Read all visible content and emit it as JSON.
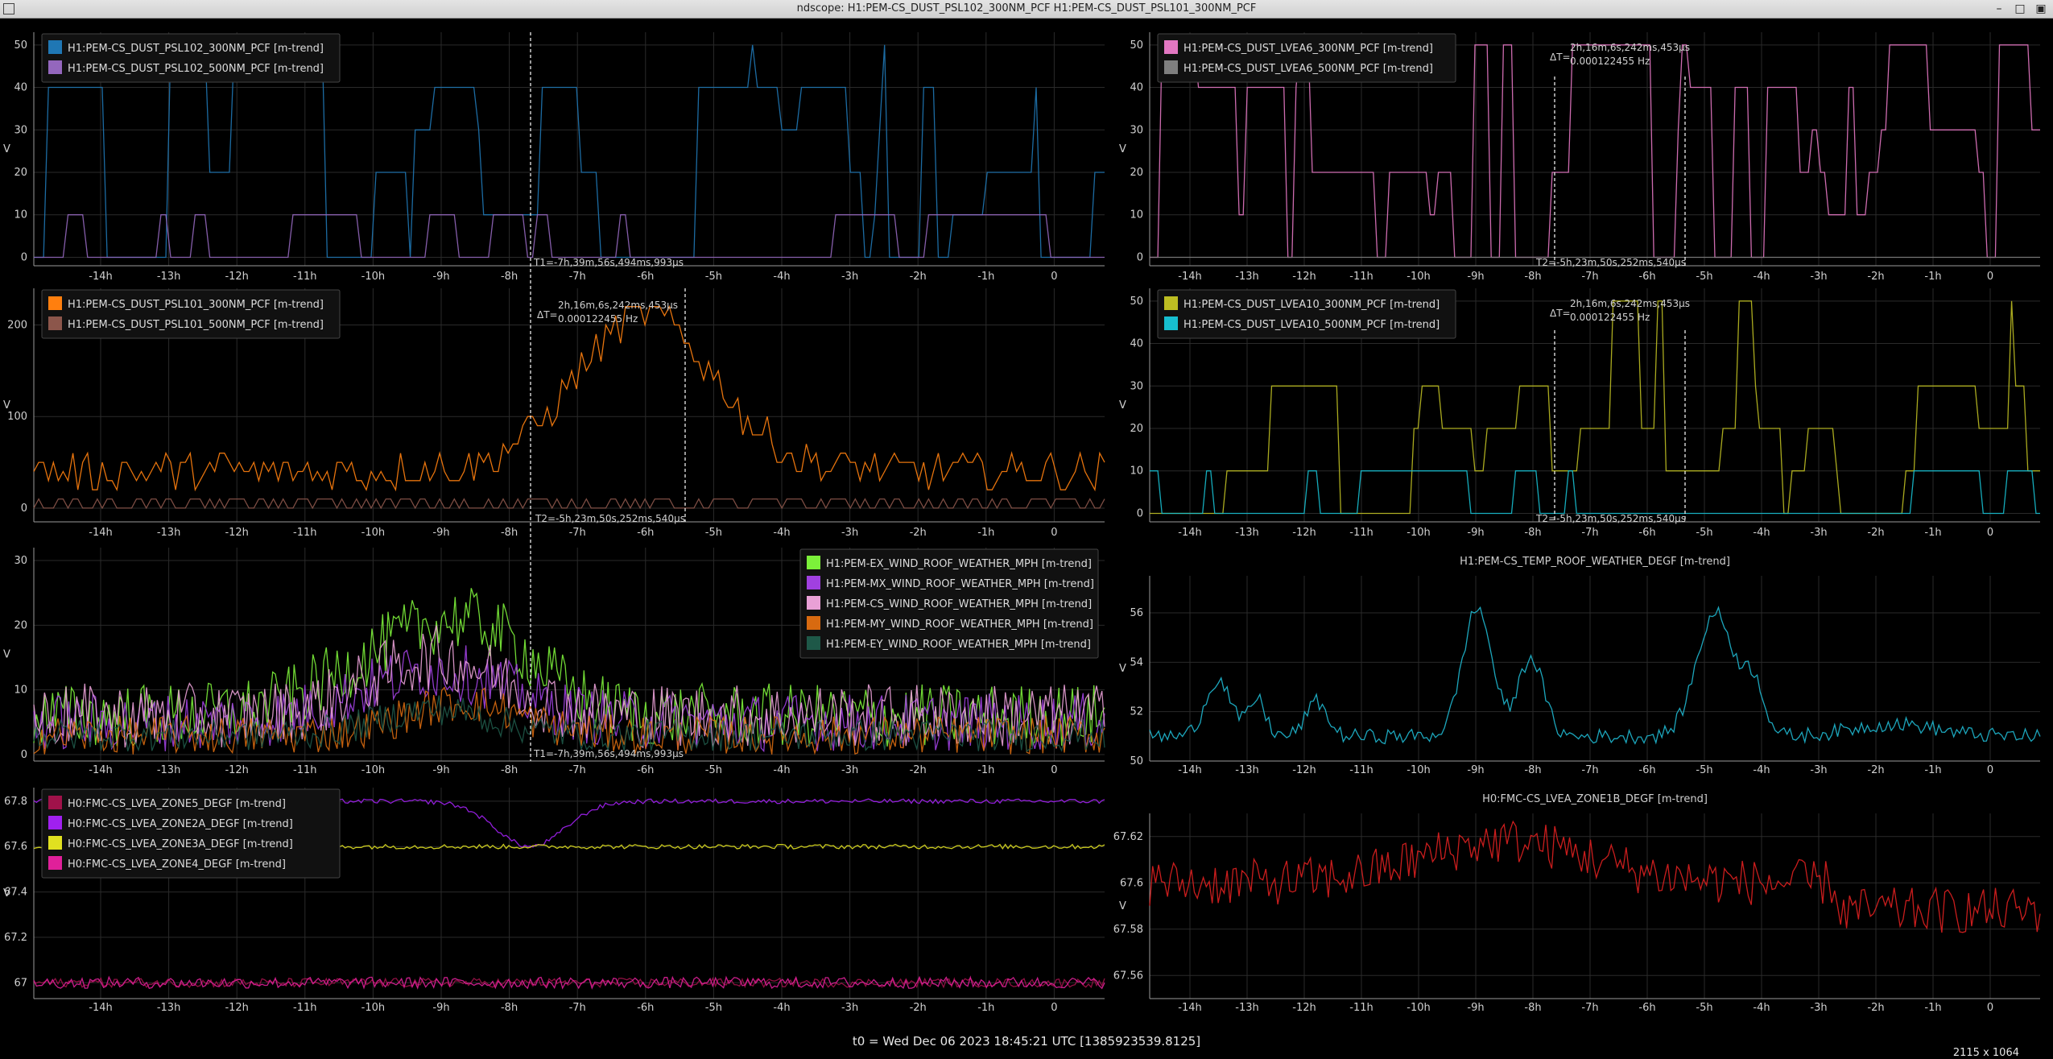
{
  "window": {
    "title": "ndscope: H1:PEM-CS_DUST_PSL102_300NM_PCF H1:PEM-CS_DUST_PSL101_300NM_PCF",
    "buttons": [
      "minimize",
      "maximize",
      "close"
    ]
  },
  "footer": {
    "t0_text": "t0 = Wed Dec 06 2023 18:45:21 UTC [1385923539.8125]",
    "size_text": "2115 x 1064"
  },
  "x_ticks_left": [
    "-14h",
    "-13h",
    "-12h",
    "-11h",
    "-10h",
    "-9h",
    "-8h",
    "-7h",
    "-6h",
    "-5h",
    "-4h",
    "-3h",
    "-2h",
    "-1h",
    "0"
  ],
  "x_ticks_right": [
    "-14h",
    "-13h",
    "-12h",
    "-11h",
    "-10h",
    "-9h",
    "-8h",
    "-7h",
    "-6h",
    "-5h",
    "-4h",
    "-3h",
    "-2h",
    "-1h",
    "0"
  ],
  "cursors": {
    "t1_label": "T1=-7h,39m,56s,494ms,993µs",
    "t2_label": "T2=-5h,23m,50s,252ms,540µs",
    "t2_label_short": "T2=-5h,23m,50s,252ms,540µs",
    "dt_symbol": "ΔT=",
    "dt_value": "2h,16m,6s,242ms,453µs",
    "dt_freq": "0.000122455 Hz"
  },
  "chart_data": [
    {
      "type": "line",
      "panel": "left-1",
      "ylabel": "V",
      "yticks": [
        "0",
        "10",
        "20",
        "30",
        "40",
        "50"
      ],
      "ylim": [
        -2,
        53
      ],
      "series": [
        {
          "name": "H1:PEM-CS_DUST_PSL102_300NM_PCF [m-trend]",
          "color": "#1f77b4"
        },
        {
          "name": "H1:PEM-CS_DUST_PSL102_500NM_PCF [m-trend]",
          "color": "#9467bd"
        }
      ]
    },
    {
      "type": "line",
      "panel": "right-1",
      "ylabel": "V",
      "yticks": [
        "0",
        "10",
        "20",
        "30",
        "40",
        "50"
      ],
      "ylim": [
        -2,
        53
      ],
      "series": [
        {
          "name": "H1:PEM-CS_DUST_LVEA6_300NM_PCF [m-trend]",
          "color": "#e377c2"
        },
        {
          "name": "H1:PEM-CS_DUST_LVEA6_500NM_PCF [m-trend]",
          "color": "#7f7f7f"
        }
      ]
    },
    {
      "type": "line",
      "panel": "left-2",
      "ylabel": "V",
      "yticks": [
        "0",
        "100",
        "200"
      ],
      "ylim": [
        -15,
        240
      ],
      "series": [
        {
          "name": "H1:PEM-CS_DUST_PSL101_300NM_PCF [m-trend]",
          "color": "#ff7f0e"
        },
        {
          "name": "H1:PEM-CS_DUST_PSL101_500NM_PCF [m-trend]",
          "color": "#8c564b"
        }
      ]
    },
    {
      "type": "line",
      "panel": "right-2",
      "ylabel": "V",
      "yticks": [
        "0",
        "10",
        "20",
        "30",
        "40",
        "50"
      ],
      "ylim": [
        -2,
        53
      ],
      "series": [
        {
          "name": "H1:PEM-CS_DUST_LVEA10_300NM_PCF [m-trend]",
          "color": "#bcbd22"
        },
        {
          "name": "H1:PEM-CS_DUST_LVEA10_500NM_PCF [m-trend]",
          "color": "#17becf"
        }
      ]
    },
    {
      "type": "line",
      "panel": "left-3",
      "ylabel": "V",
      "yticks": [
        "0",
        "10",
        "20",
        "30"
      ],
      "ylim": [
        -1,
        32
      ],
      "series": [
        {
          "name": "H1:PEM-EX_WIND_ROOF_WEATHER_MPH [m-trend]",
          "color": "#7cf03a"
        },
        {
          "name": "H1:PEM-MX_WIND_ROOF_WEATHER_MPH [m-trend]",
          "color": "#a040e0"
        },
        {
          "name": "H1:PEM-CS_WIND_ROOF_WEATHER_MPH [m-trend]",
          "color": "#e9a0d6"
        },
        {
          "name": "H1:PEM-MY_WIND_ROOF_WEATHER_MPH [m-trend]",
          "color": "#d86a10"
        },
        {
          "name": "H1:PEM-EY_WIND_ROOF_WEATHER_MPH [m-trend]",
          "color": "#1e5848"
        }
      ]
    },
    {
      "type": "line",
      "panel": "right-3",
      "title": "H1:PEM-CS_TEMP_ROOF_WEATHER_DEGF [m-trend]",
      "ylabel": "V",
      "yticks": [
        "50",
        "52",
        "54",
        "56"
      ],
      "ylim": [
        50,
        57.5
      ],
      "series": [
        {
          "color": "#1fb8d0"
        }
      ]
    },
    {
      "type": "line",
      "panel": "left-4",
      "ylabel": "V",
      "yticks": [
        "67",
        "67.2",
        "67.4",
        "67.6",
        "67.8"
      ],
      "ylim": [
        66.93,
        67.86
      ],
      "series": [
        {
          "name": "H0:FMC-CS_LVEA_ZONE5_DEGF [m-trend]",
          "color": "#a0124a"
        },
        {
          "name": "H0:FMC-CS_LVEA_ZONE2A_DEGF [m-trend]",
          "color": "#a020f0"
        },
        {
          "name": "H0:FMC-CS_LVEA_ZONE3A_DEGF [m-trend]",
          "color": "#e0e020"
        },
        {
          "name": "H0:FMC-CS_LVEA_ZONE4_DEGF [m-trend]",
          "color": "#e0209a"
        }
      ]
    },
    {
      "type": "line",
      "panel": "right-4",
      "title": "H0:FMC-CS_LVEA_ZONE1B_DEGF [m-trend]",
      "ylabel": "V",
      "yticks": [
        "67.56",
        "67.58",
        "67.6",
        "67.62"
      ],
      "ylim": [
        67.55,
        67.63
      ],
      "series": [
        {
          "color": "#e02020"
        }
      ]
    }
  ]
}
